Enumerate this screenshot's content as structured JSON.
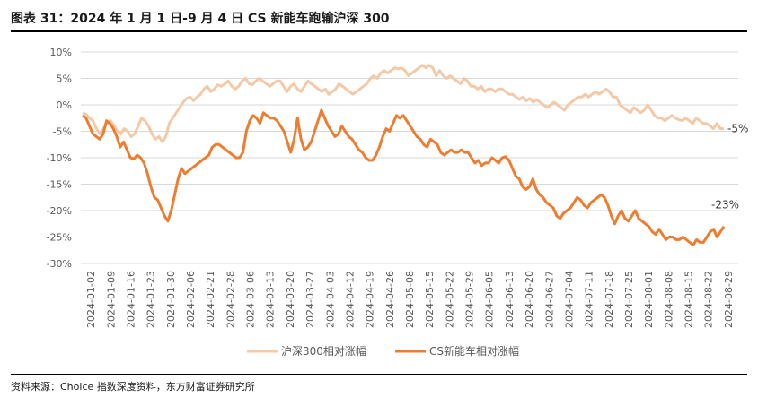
{
  "title": "图表 31：2024 年 1 月 1 日-9 月 4 日 CS 新能车跑输沪深 300",
  "source": "资料来源：Choice 指数深度资料，东方财富证券研究所",
  "chart_data": {
    "type": "line",
    "ylim": [
      -30,
      10
    ],
    "yticks": [
      10,
      5,
      0,
      -5,
      -10,
      -15,
      -20,
      -25,
      -30
    ],
    "ytick_labels": [
      "10%",
      "5%",
      "0%",
      "-5%",
      "-10%",
      "-15%",
      "-20%",
      "-25%",
      "-30%"
    ],
    "x_tick_labels": [
      "2024-01-02",
      "2024-01-09",
      "2024-01-16",
      "2024-01-23",
      "2024-01-30",
      "2024-02-06",
      "2024-02-21",
      "2024-02-28",
      "2024-03-06",
      "2024-03-13",
      "2024-03-20",
      "2024-03-27",
      "2024-04-03",
      "2024-04-12",
      "2024-04-19",
      "2024-04-26",
      "2024-05-08",
      "2024-05-15",
      "2024-05-22",
      "2024-05-29",
      "2024-06-05",
      "2024-06-13",
      "2024-06-20",
      "2024-06-27",
      "2024-07-04",
      "2024-07-11",
      "2024-07-18",
      "2024-07-25",
      "2024-08-01",
      "2024-08-08",
      "2024-08-15",
      "2024-08-22",
      "2024-08-29"
    ],
    "legend_position": "bottom",
    "series": [
      {
        "name": "沪深300相对涨幅",
        "color": "#f4c9a7",
        "end_label": "-5%",
        "values": [
          -1.5,
          -1.8,
          -2.5,
          -3,
          -4.5,
          -5.5,
          -4.5,
          -3.5,
          -3,
          -3.8,
          -5,
          -5.5,
          -4.5,
          -5,
          -6,
          -5.5,
          -4,
          -2.5,
          -3,
          -4,
          -5.5,
          -6.5,
          -6,
          -7,
          -6,
          -3.5,
          -2.5,
          -1.5,
          -0.5,
          0.5,
          1.2,
          1.5,
          0.8,
          1.5,
          2,
          3,
          3.5,
          2.5,
          3,
          3.8,
          3.5,
          4,
          4.5,
          3.5,
          3,
          3.5,
          4.5,
          5,
          4,
          3.8,
          4.5,
          5,
          4.5,
          4,
          3.5,
          4,
          4.5,
          4.5,
          3.5,
          2.5,
          3.5,
          4,
          3,
          2.5,
          3.5,
          4.5,
          4,
          3.5,
          3,
          2.5,
          3,
          2,
          2.5,
          3,
          4,
          3.5,
          3,
          2.5,
          2,
          2.5,
          3,
          3.5,
          4,
          5,
          5.5,
          5,
          6,
          6.5,
          6,
          6.5,
          7,
          6.8,
          7,
          6.5,
          5.5,
          6,
          6.5,
          7,
          7.5,
          7,
          7.5,
          7,
          5.5,
          6.5,
          5.5,
          5,
          5.5,
          5,
          4.5,
          4,
          5,
          4.5,
          3.5,
          3.5,
          3,
          3.5,
          2.5,
          3,
          3,
          2.5,
          3,
          3,
          2.5,
          2,
          2,
          1.5,
          1,
          1.5,
          0.8,
          1.2,
          0.5,
          1,
          0.5,
          0,
          -0.5,
          0,
          0.5,
          0,
          -0.5,
          -1,
          0,
          0.5,
          1,
          1.5,
          1.5,
          2,
          1.5,
          2,
          2.5,
          2,
          2.5,
          3,
          2.5,
          1.5,
          1.5,
          0,
          -0.5,
          -1,
          -1.5,
          -0.5,
          -1,
          -1.5,
          -1,
          0,
          -1,
          -2,
          -2.5,
          -2.5,
          -3,
          -2.5,
          -2,
          -2.5,
          -2.8,
          -3,
          -2.5,
          -3,
          -3.5,
          -2.5,
          -3,
          -3.5,
          -3.5,
          -4,
          -4.5,
          -3.5,
          -4.5,
          -4.5
        ]
      },
      {
        "name": "CS新能车相对涨幅",
        "color": "#ed7d31",
        "end_label": "-23%",
        "values": [
          -2,
          -2.5,
          -4,
          -5.5,
          -6,
          -6.5,
          -5.5,
          -3,
          -3.5,
          -4.5,
          -6,
          -8,
          -7,
          -8.5,
          -10,
          -10.2,
          -9.5,
          -10,
          -11,
          -13,
          -15.5,
          -17.5,
          -18,
          -19.5,
          -21,
          -22,
          -20,
          -17,
          -14,
          -12,
          -13,
          -12.5,
          -12,
          -11.5,
          -11,
          -10.5,
          -10,
          -9.5,
          -8,
          -7.5,
          -7.5,
          -8,
          -8.5,
          -9,
          -9.5,
          -10,
          -10,
          -9,
          -5,
          -3,
          -2,
          -2.5,
          -3.5,
          -1.5,
          -2,
          -2.5,
          -2.5,
          -3,
          -4,
          -5,
          -7,
          -9,
          -6.5,
          -2.5,
          -6.5,
          -8.5,
          -8,
          -7,
          -5,
          -3,
          -1,
          -2.5,
          -4,
          -5,
          -6,
          -5.5,
          -4,
          -5,
          -6,
          -6.5,
          -7.5,
          -8.5,
          -9,
          -10,
          -10.5,
          -10.5,
          -9.5,
          -8,
          -6,
          -4.5,
          -5,
          -3.5,
          -2,
          -2.5,
          -2,
          -3,
          -4,
          -5,
          -6,
          -6.5,
          -7.5,
          -8,
          -6.5,
          -7,
          -7.5,
          -9,
          -9.5,
          -9,
          -8.5,
          -9,
          -9,
          -8.5,
          -9,
          -9,
          -10,
          -11,
          -10.5,
          -11.5,
          -11,
          -11,
          -10,
          -10.5,
          -11,
          -10,
          -9.8,
          -10.5,
          -12,
          -13.5,
          -14,
          -15.5,
          -16,
          -15.5,
          -14,
          -16,
          -17,
          -17.5,
          -18.5,
          -19,
          -19.5,
          -21,
          -21.5,
          -20.5,
          -20,
          -19.5,
          -18.5,
          -17.5,
          -18,
          -19,
          -19.5,
          -18.5,
          -18,
          -17.5,
          -17,
          -17.5,
          -19,
          -21,
          -22.5,
          -21,
          -20,
          -21.5,
          -22,
          -21,
          -20,
          -21.5,
          -22,
          -22.5,
          -23,
          -24,
          -24.5,
          -23.5,
          -24.5,
          -25.5,
          -25,
          -25,
          -25.5,
          -25.5,
          -25,
          -25.5,
          -26,
          -26.5,
          -25.5,
          -26,
          -26,
          -25,
          -24,
          -23.5,
          -25,
          -24,
          -23
        ]
      }
    ]
  }
}
